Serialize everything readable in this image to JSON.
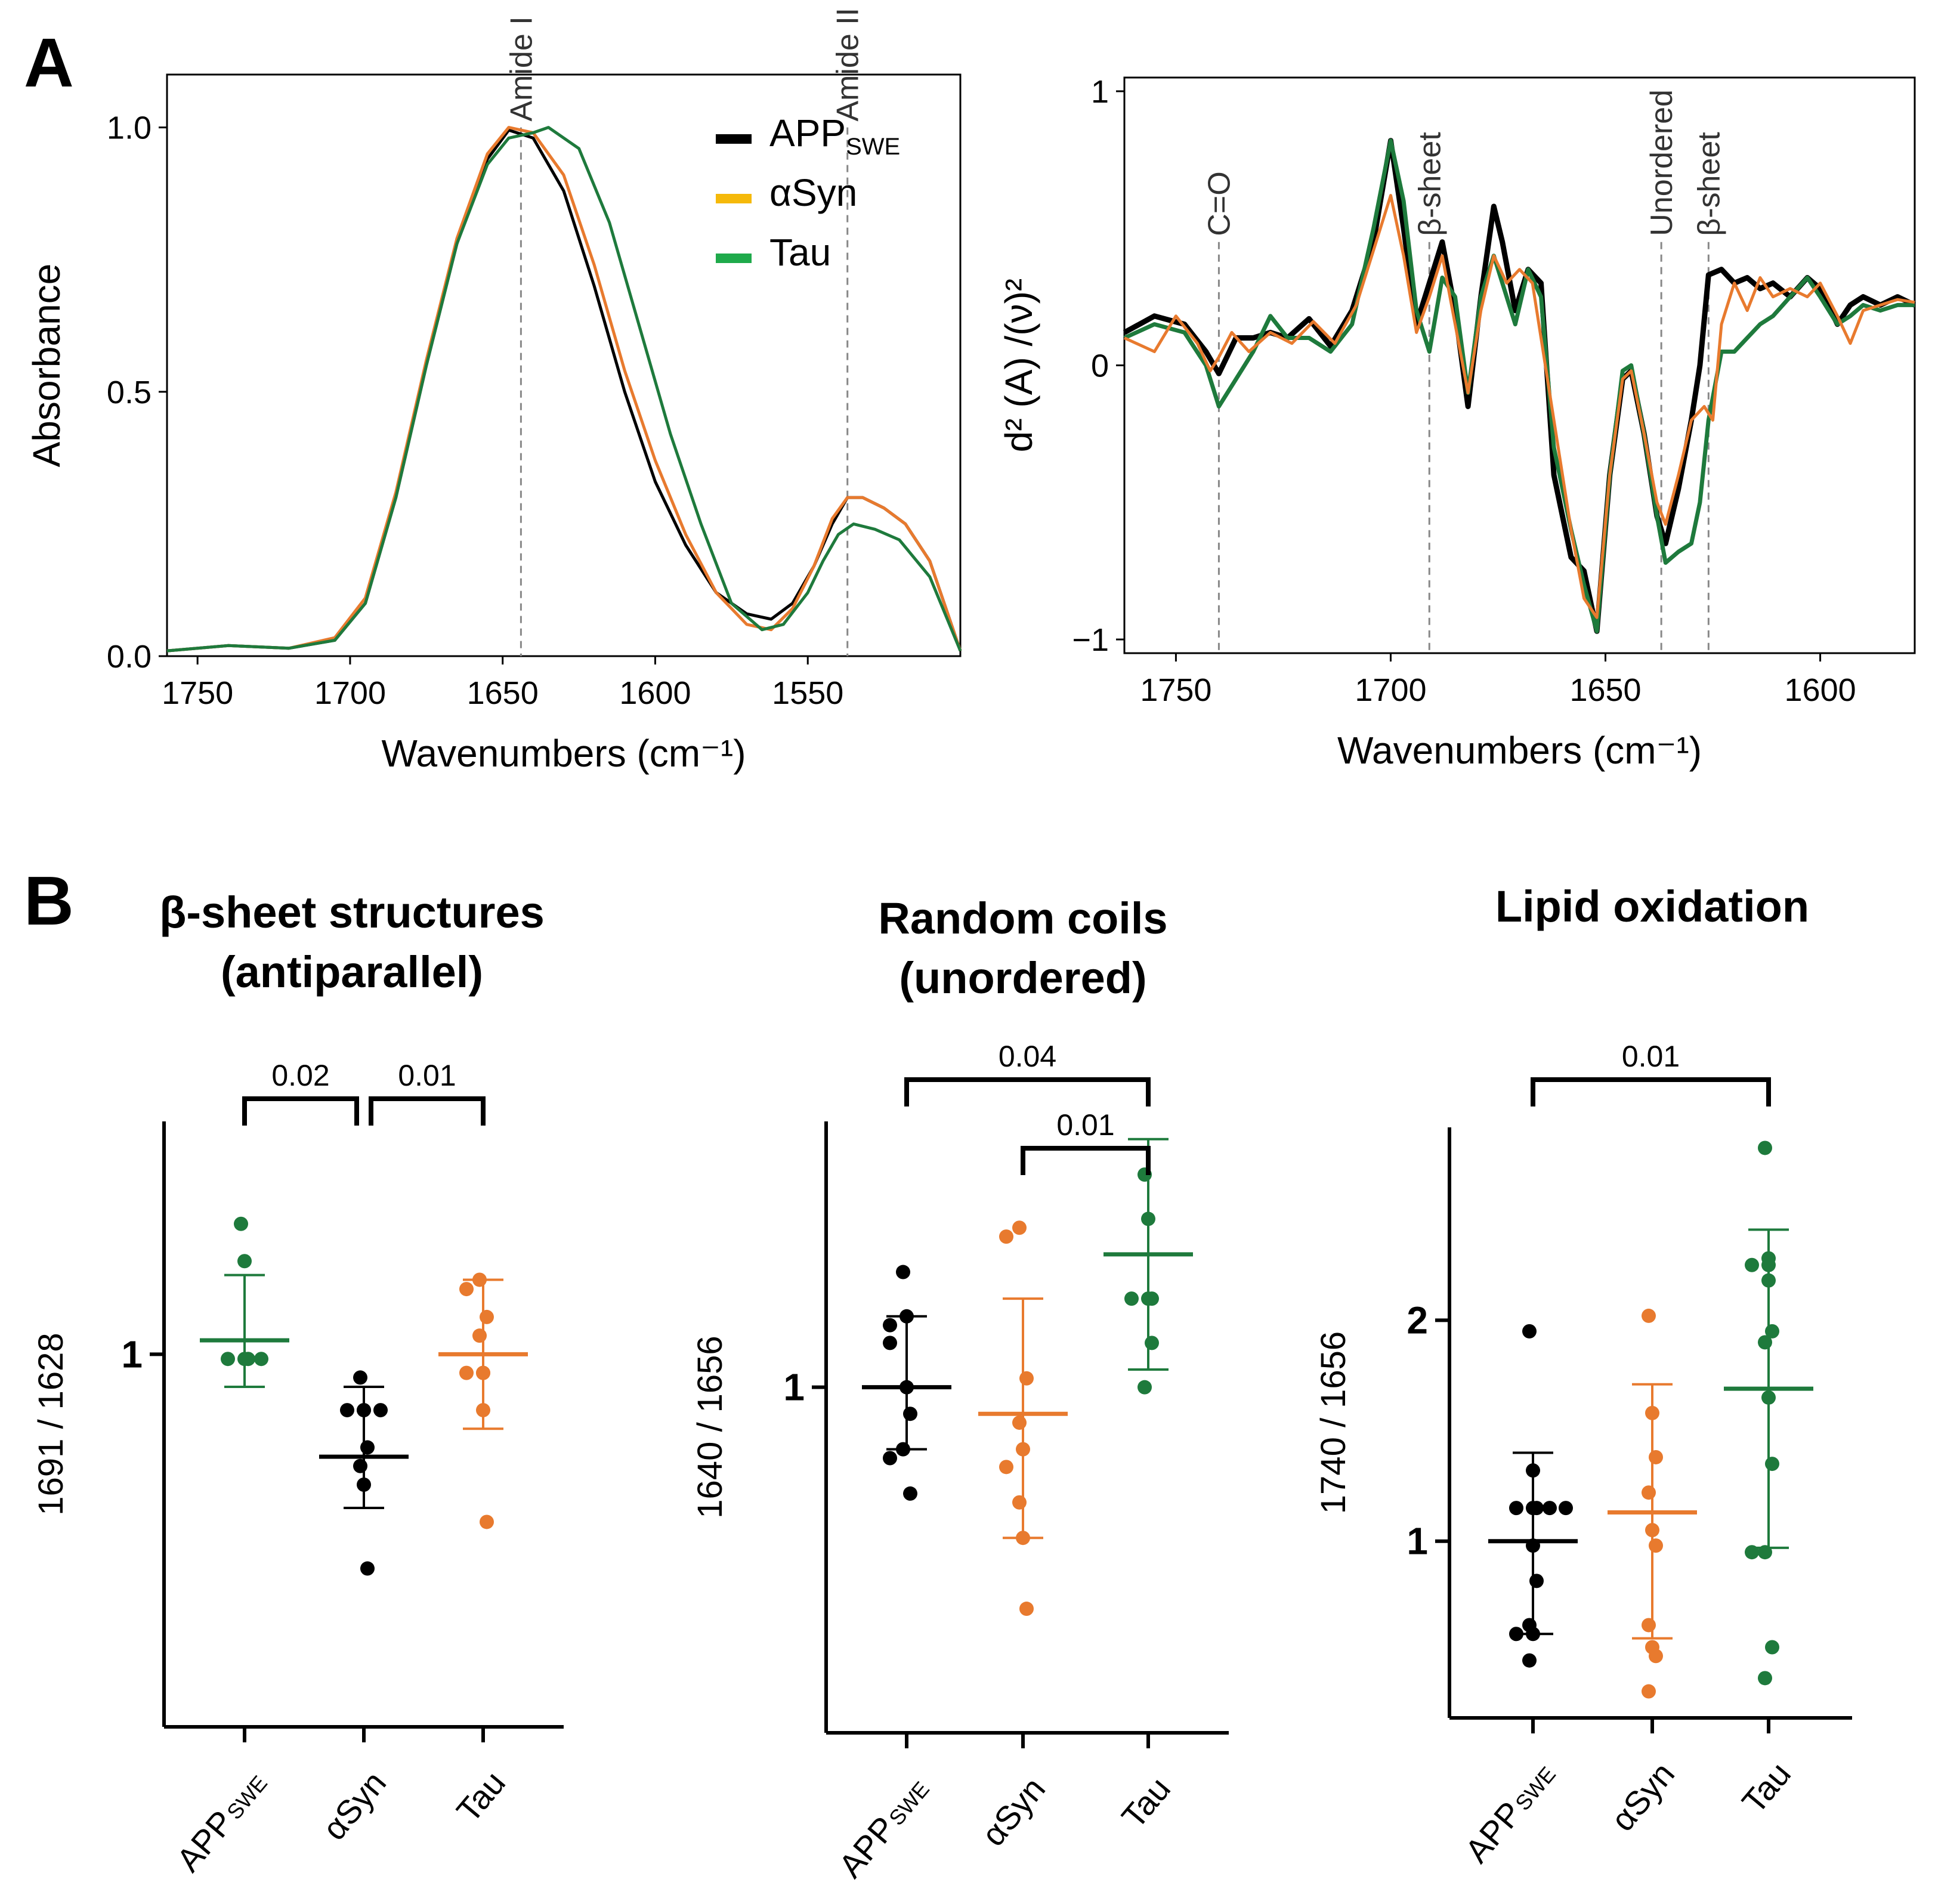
{
  "panel_labels": {
    "a": "A",
    "b": "B"
  },
  "colors": {
    "app": "#000000",
    "asyn": "#E87A2E",
    "tau": "#1E7A3C",
    "legend_asyn": "#F5B90A",
    "legend_tau": "#1FAA4B",
    "ref_line": "#888888"
  },
  "chart_data": [
    {
      "id": "absorbance",
      "type": "line",
      "xlabel": "Wavenumbers (cm⁻¹)",
      "ylabel": "Absorbance",
      "xlim": [
        1760,
        1500
      ],
      "ylim": [
        0,
        1.1
      ],
      "xticks": [
        1750,
        1700,
        1650,
        1600,
        1550
      ],
      "yticks": [
        0.0,
        0.5,
        1.0
      ],
      "ytick_labels": [
        "0.0",
        "0.5",
        "1.0"
      ],
      "legend": {
        "location": "top-right",
        "entries": [
          {
            "key": "app",
            "base": "APP",
            "sub": "SWE"
          },
          {
            "key": "asyn",
            "base": "αSyn",
            "sub": ""
          },
          {
            "key": "tau",
            "base": "Tau",
            "sub": ""
          }
        ]
      },
      "annotations": [
        {
          "x": 1644,
          "label": "Amide I"
        },
        {
          "x": 1537,
          "label": "Amide II"
        }
      ],
      "series": [
        {
          "name": "APP_SWE",
          "color_key": "app",
          "x": [
            1760,
            1740,
            1720,
            1705,
            1695,
            1685,
            1675,
            1665,
            1655,
            1648,
            1640,
            1630,
            1620,
            1610,
            1600,
            1590,
            1580,
            1570,
            1562,
            1555,
            1548,
            1542,
            1537,
            1532,
            1525,
            1518,
            1510,
            1500
          ],
          "y": [
            0.01,
            0.02,
            0.015,
            0.03,
            0.1,
            0.3,
            0.55,
            0.78,
            0.94,
            0.995,
            0.98,
            0.88,
            0.7,
            0.5,
            0.33,
            0.21,
            0.12,
            0.08,
            0.07,
            0.1,
            0.17,
            0.25,
            0.3,
            0.3,
            0.28,
            0.25,
            0.18,
            0.01
          ]
        },
        {
          "name": "αSyn",
          "color_key": "asyn",
          "x": [
            1760,
            1740,
            1720,
            1705,
            1695,
            1685,
            1675,
            1665,
            1655,
            1648,
            1640,
            1630,
            1620,
            1610,
            1600,
            1590,
            1580,
            1570,
            1562,
            1555,
            1548,
            1542,
            1537,
            1532,
            1525,
            1518,
            1510,
            1500
          ],
          "y": [
            0.01,
            0.02,
            0.015,
            0.035,
            0.11,
            0.31,
            0.56,
            0.79,
            0.95,
            1.0,
            0.99,
            0.91,
            0.74,
            0.54,
            0.37,
            0.23,
            0.12,
            0.06,
            0.05,
            0.09,
            0.17,
            0.26,
            0.3,
            0.3,
            0.28,
            0.25,
            0.18,
            0.01
          ]
        },
        {
          "name": "Tau",
          "color_key": "tau",
          "x": [
            1760,
            1740,
            1720,
            1705,
            1695,
            1685,
            1675,
            1665,
            1655,
            1648,
            1640,
            1635,
            1625,
            1615,
            1605,
            1595,
            1585,
            1575,
            1565,
            1558,
            1550,
            1545,
            1540,
            1535,
            1528,
            1520,
            1510,
            1500
          ],
          "y": [
            0.01,
            0.02,
            0.015,
            0.03,
            0.1,
            0.3,
            0.55,
            0.78,
            0.93,
            0.98,
            0.99,
            1.0,
            0.96,
            0.82,
            0.62,
            0.42,
            0.25,
            0.1,
            0.05,
            0.06,
            0.12,
            0.18,
            0.23,
            0.25,
            0.24,
            0.22,
            0.15,
            0.01
          ]
        }
      ]
    },
    {
      "id": "second_derivative",
      "type": "line",
      "xlabel": "Wavenumbers (cm⁻¹)",
      "ylabel": "d² (A) /(ν)²",
      "xlim": [
        1762,
        1578
      ],
      "ylim": [
        -1.05,
        1.05
      ],
      "xticks": [
        1750,
        1700,
        1650,
        1600
      ],
      "yticks": [
        -1,
        0,
        1
      ],
      "ytick_labels": [
        "−1",
        "0",
        "1"
      ],
      "annotations": [
        {
          "x": 1740,
          "label": "C=O"
        },
        {
          "x": 1691,
          "label": "β-sheet"
        },
        {
          "x": 1637,
          "label": "Unordered"
        },
        {
          "x": 1626,
          "label": "β-sheet"
        }
      ],
      "series": [
        {
          "name": "APP_SWE",
          "color_key": "app",
          "x": [
            1762,
            1755,
            1748,
            1743,
            1740,
            1736,
            1732,
            1728,
            1724,
            1719,
            1714,
            1709,
            1704,
            1700,
            1697,
            1694,
            1691,
            1688,
            1685,
            1682,
            1679,
            1676,
            1674,
            1671,
            1668,
            1665,
            1662,
            1658,
            1655,
            1652,
            1649,
            1646,
            1644,
            1641,
            1638,
            1636,
            1633,
            1630,
            1628,
            1626,
            1623,
            1620,
            1617,
            1614,
            1611,
            1607,
            1603,
            1600,
            1596,
            1593,
            1590,
            1586,
            1582,
            1578
          ],
          "y": [
            0.12,
            0.18,
            0.15,
            0.05,
            -0.03,
            0.1,
            0.1,
            0.12,
            0.1,
            0.17,
            0.07,
            0.2,
            0.45,
            0.82,
            0.5,
            0.15,
            0.3,
            0.45,
            0.2,
            -0.15,
            0.25,
            0.58,
            0.45,
            0.2,
            0.35,
            0.3,
            -0.4,
            -0.7,
            -0.75,
            -0.97,
            -0.4,
            -0.05,
            -0.02,
            -0.25,
            -0.55,
            -0.65,
            -0.45,
            -0.2,
            0.0,
            0.33,
            0.35,
            0.3,
            0.32,
            0.28,
            0.3,
            0.25,
            0.32,
            0.28,
            0.15,
            0.22,
            0.25,
            0.22,
            0.25,
            0.22
          ]
        },
        {
          "name": "αSyn",
          "color_key": "asyn",
          "x": [
            1762,
            1755,
            1750,
            1745,
            1742,
            1740,
            1737,
            1733,
            1728,
            1723,
            1718,
            1713,
            1708,
            1704,
            1700,
            1697,
            1694,
            1691,
            1688,
            1685,
            1682,
            1679,
            1676,
            1673,
            1670,
            1667,
            1664,
            1661,
            1658,
            1655,
            1652,
            1649,
            1646,
            1644,
            1641,
            1638,
            1636,
            1633,
            1630,
            1627,
            1625,
            1623,
            1620,
            1617,
            1614,
            1611,
            1607,
            1603,
            1600,
            1596,
            1593,
            1590,
            1586,
            1582,
            1578
          ],
          "y": [
            0.1,
            0.05,
            0.18,
            0.08,
            -0.02,
            0.03,
            0.12,
            0.05,
            0.12,
            0.08,
            0.16,
            0.08,
            0.22,
            0.42,
            0.62,
            0.4,
            0.12,
            0.25,
            0.4,
            0.15,
            -0.1,
            0.2,
            0.4,
            0.3,
            0.35,
            0.3,
            0.0,
            -0.3,
            -0.6,
            -0.85,
            -0.92,
            -0.4,
            -0.05,
            -0.02,
            -0.25,
            -0.5,
            -0.58,
            -0.4,
            -0.2,
            -0.15,
            -0.2,
            0.15,
            0.3,
            0.2,
            0.32,
            0.25,
            0.28,
            0.25,
            0.3,
            0.18,
            0.08,
            0.2,
            0.22,
            0.24,
            0.23
          ]
        },
        {
          "name": "Tau",
          "color_key": "tau",
          "x": [
            1762,
            1755,
            1748,
            1743,
            1740,
            1736,
            1732,
            1728,
            1724,
            1719,
            1714,
            1709,
            1704,
            1700,
            1697,
            1694,
            1691,
            1688,
            1685,
            1682,
            1679,
            1676,
            1674,
            1671,
            1668,
            1665,
            1662,
            1658,
            1655,
            1652,
            1649,
            1646,
            1644,
            1641,
            1638,
            1636,
            1633,
            1630,
            1628,
            1626,
            1623,
            1620,
            1617,
            1614,
            1611,
            1607,
            1603,
            1600,
            1596,
            1593,
            1590,
            1586,
            1582,
            1578
          ],
          "y": [
            0.1,
            0.15,
            0.12,
            0.0,
            -0.15,
            -0.05,
            0.05,
            0.18,
            0.1,
            0.1,
            0.05,
            0.15,
            0.5,
            0.82,
            0.6,
            0.2,
            0.05,
            0.32,
            0.25,
            -0.1,
            0.25,
            0.4,
            0.3,
            0.15,
            0.35,
            0.25,
            -0.3,
            -0.6,
            -0.8,
            -0.97,
            -0.4,
            -0.02,
            0.0,
            -0.25,
            -0.55,
            -0.72,
            -0.68,
            -0.65,
            -0.5,
            -0.2,
            0.05,
            0.05,
            0.1,
            0.15,
            0.18,
            0.25,
            0.32,
            0.25,
            0.15,
            0.18,
            0.22,
            0.2,
            0.22,
            0.22
          ]
        }
      ]
    },
    {
      "id": "beta_sheet",
      "type": "scatter",
      "title": "β-sheet structures (antiparallel)",
      "title_lines": [
        "β-sheet structures",
        "(antiparallel)"
      ],
      "ylabel": "1691 / 1628",
      "ylim": [
        0.92,
        1.05
      ],
      "yticks": [
        1
      ],
      "ytick_labels": [
        "1"
      ],
      "categories": [
        {
          "base": "APP",
          "sub": "SWE"
        },
        {
          "base": "αSyn",
          "sub": ""
        },
        {
          "base": "Tau",
          "sub": ""
        }
      ],
      "groups": [
        {
          "color_key": "tau",
          "points": [
            1.028,
            1.02,
            0.999,
            0.999,
            0.999,
            0.999
          ],
          "mean": 1.003,
          "err": [
            0.993,
            1.017
          ]
        },
        {
          "color_key": "app",
          "points": [
            0.995,
            0.988,
            0.988,
            0.988,
            0.988,
            0.98,
            0.976,
            0.972,
            0.954
          ],
          "mean": 0.978,
          "err": [
            0.967,
            0.993
          ]
        },
        {
          "color_key": "asyn",
          "points": [
            1.016,
            1.014,
            1.008,
            1.004,
            0.996,
            0.996,
            0.996,
            0.988,
            0.964
          ],
          "mean": 1.0,
          "err": [
            0.984,
            1.016
          ]
        }
      ],
      "brackets": [
        {
          "from": 0,
          "to": 1,
          "label": "0.02"
        },
        {
          "from": 1,
          "to": 2,
          "label": "0.01"
        }
      ]
    },
    {
      "id": "random_coils",
      "type": "scatter",
      "title": "Random coils (unordered)",
      "title_lines": [
        "Random coils",
        "(unordered)"
      ],
      "ylabel": "1640 / 1656",
      "ylim": [
        0.961,
        1.03
      ],
      "yticks": [
        1
      ],
      "ytick_labels": [
        "1"
      ],
      "categories": [
        {
          "base": "APP",
          "sub": "SWE"
        },
        {
          "base": "αSyn",
          "sub": ""
        },
        {
          "base": "Tau",
          "sub": ""
        }
      ],
      "groups": [
        {
          "color_key": "app",
          "points": [
            1.013,
            1.008,
            1.007,
            1.005,
            1.0,
            0.997,
            0.993,
            0.992,
            0.988
          ],
          "mean": 1.0,
          "err": [
            0.993,
            1.008
          ]
        },
        {
          "color_key": "asyn",
          "points": [
            1.018,
            1.017,
            1.001,
            0.996,
            0.993,
            0.991,
            0.987,
            0.983,
            0.975
          ],
          "mean": 0.997,
          "err": [
            0.983,
            1.01
          ]
        },
        {
          "color_key": "tau",
          "points": [
            1.024,
            1.019,
            1.01,
            1.01,
            1.01,
            1.005,
            1.0
          ],
          "mean": 1.015,
          "err": [
            1.002,
            1.028
          ]
        }
      ],
      "brackets": [
        {
          "from": 0,
          "to": 2,
          "label": "0.04"
        },
        {
          "from": 1,
          "to": 2,
          "label": "0.01"
        }
      ]
    },
    {
      "id": "lipid_oxidation",
      "type": "scatter",
      "title": "Lipid oxidation",
      "title_lines": [
        "Lipid oxidation"
      ],
      "ylabel": "1740 / 1656",
      "ylim": [
        0.2,
        2.9
      ],
      "yticks": [
        1,
        2
      ],
      "ytick_labels": [
        "1",
        "2"
      ],
      "categories": [
        {
          "base": "APP",
          "sub": "SWE"
        },
        {
          "base": "αSyn",
          "sub": ""
        },
        {
          "base": "Tau",
          "sub": ""
        }
      ],
      "groups": [
        {
          "color_key": "app",
          "points": [
            1.95,
            1.32,
            1.15,
            1.15,
            1.15,
            1.15,
            1.15,
            0.98,
            0.82,
            0.62,
            0.58,
            0.58,
            0.46
          ],
          "mean": 1.0,
          "err": [
            0.58,
            1.4
          ]
        },
        {
          "color_key": "asyn",
          "points": [
            2.02,
            1.58,
            1.38,
            1.22,
            1.05,
            0.98,
            0.62,
            0.52,
            0.48,
            0.32
          ],
          "mean": 1.13,
          "err": [
            0.56,
            1.71
          ]
        },
        {
          "color_key": "tau",
          "points": [
            2.78,
            2.28,
            2.25,
            2.25,
            2.18,
            1.95,
            1.9,
            1.65,
            1.35,
            0.95,
            0.95,
            0.52,
            0.38
          ],
          "mean": 1.69,
          "err": [
            0.97,
            2.41
          ]
        }
      ],
      "brackets": [
        {
          "from": 0,
          "to": 2,
          "label": "0.01"
        }
      ]
    }
  ]
}
